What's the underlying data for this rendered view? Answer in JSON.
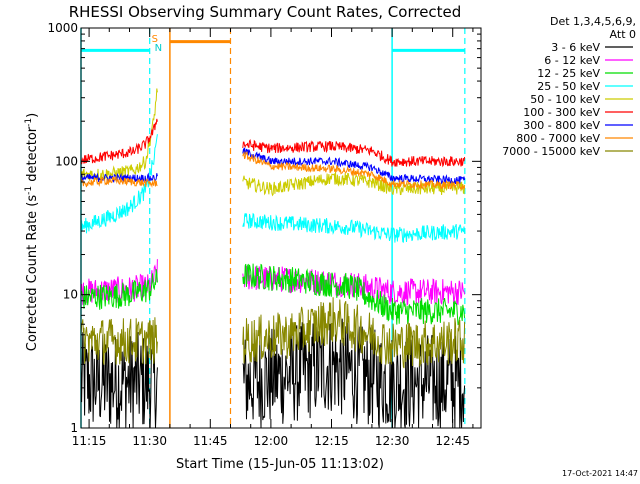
{
  "chart_data": {
    "type": "line",
    "title": "RHESSI Observing Summary Count Rates, Corrected",
    "xlabel": "Start Time (15-Jun-05 11:13:02)",
    "ylabel": "Corrected Count Rate (s",
    "ylabel_sup1": "-1",
    "ylabel_mid": " detector",
    "ylabel_sup2": "-1",
    "ylabel_end": ")",
    "yscale": "log",
    "xlim": [
      "11:13",
      "12:52"
    ],
    "ylim": [
      1,
      1000
    ],
    "x_ticks": [
      "11:15",
      "11:30",
      "11:45",
      "12:00",
      "12:15",
      "12:30",
      "12:45"
    ],
    "y_ticks": [
      "1",
      "10",
      "100",
      "1000"
    ],
    "legend": {
      "placement": "right",
      "header": [
        "Det 1,3,4,5,6,9,",
        "Att 0"
      ]
    },
    "series": [
      {
        "name": "3 - 6 keV",
        "color": "#000000",
        "points": [
          [
            "11:13",
            2.2
          ],
          [
            "11:32",
            2.2
          ],
          [
            "11:53",
            2.2
          ],
          [
            "12:05",
            2.5
          ],
          [
            "12:15",
            3.0
          ],
          [
            "12:22",
            2.5
          ],
          [
            "12:30",
            2.2
          ],
          [
            "12:48",
            2.2
          ]
        ]
      },
      {
        "name": "6 - 12 keV",
        "color": "#ff00ff",
        "points": [
          [
            "11:13",
            10.5
          ],
          [
            "11:25",
            11
          ],
          [
            "11:30",
            11.5
          ],
          [
            "11:32",
            15
          ],
          [
            "11:53",
            13.5
          ],
          [
            "12:05",
            13
          ],
          [
            "12:20",
            12
          ],
          [
            "12:30",
            10.5
          ],
          [
            "12:48",
            10.5
          ]
        ]
      },
      {
        "name": "12 - 25 keV",
        "color": "#00dd00",
        "points": [
          [
            "11:13",
            9.5
          ],
          [
            "11:25",
            10
          ],
          [
            "11:30",
            11
          ],
          [
            "11:32",
            13
          ],
          [
            "11:53",
            14
          ],
          [
            "12:05",
            13
          ],
          [
            "12:20",
            11.5
          ],
          [
            "12:30",
            7.5
          ],
          [
            "12:48",
            7.5
          ]
        ]
      },
      {
        "name": "25 - 50 keV",
        "color": "#00ffff",
        "points": [
          [
            "11:13",
            32
          ],
          [
            "11:20",
            38
          ],
          [
            "11:25",
            45
          ],
          [
            "11:29",
            60
          ],
          [
            "11:31",
            100
          ],
          [
            "11:32",
            160
          ],
          [
            "11:53",
            36
          ],
          [
            "12:05",
            34
          ],
          [
            "12:20",
            32
          ],
          [
            "12:30",
            28
          ],
          [
            "12:48",
            30
          ]
        ]
      },
      {
        "name": "50 - 100 keV",
        "color": "#cccc00",
        "points": [
          [
            "11:13",
            80
          ],
          [
            "11:20",
            80
          ],
          [
            "11:26",
            85
          ],
          [
            "11:29",
            100
          ],
          [
            "11:31",
            200
          ],
          [
            "11:32",
            380
          ],
          [
            "11:53",
            70
          ],
          [
            "12:00",
            62
          ],
          [
            "12:15",
            75
          ],
          [
            "12:25",
            70
          ],
          [
            "12:30",
            62
          ],
          [
            "12:48",
            63
          ]
        ]
      },
      {
        "name": "100 - 300 keV",
        "color": "#ff0000",
        "points": [
          [
            "11:13",
            102
          ],
          [
            "11:20",
            110
          ],
          [
            "11:26",
            118
          ],
          [
            "11:29",
            135
          ],
          [
            "11:31",
            170
          ],
          [
            "11:32",
            220
          ],
          [
            "11:53",
            135
          ],
          [
            "12:00",
            125
          ],
          [
            "12:15",
            130
          ],
          [
            "12:25",
            120
          ],
          [
            "12:30",
            100
          ],
          [
            "12:48",
            100
          ]
        ]
      },
      {
        "name": "300 - 800 keV",
        "color": "#0000ff",
        "points": [
          [
            "11:13",
            75
          ],
          [
            "11:20",
            75
          ],
          [
            "11:31",
            75
          ],
          [
            "11:53",
            120
          ],
          [
            "12:00",
            100
          ],
          [
            "12:15",
            100
          ],
          [
            "12:25",
            90
          ],
          [
            "12:30",
            75
          ],
          [
            "12:48",
            72
          ]
        ]
      },
      {
        "name": "800 - 7000 keV",
        "color": "#ff8800",
        "points": [
          [
            "11:13",
            68
          ],
          [
            "11:20",
            72
          ],
          [
            "11:26",
            70
          ],
          [
            "11:31",
            68
          ],
          [
            "11:53",
            112
          ],
          [
            "12:00",
            92
          ],
          [
            "12:15",
            88
          ],
          [
            "12:25",
            80
          ],
          [
            "12:30",
            68
          ],
          [
            "12:48",
            66
          ]
        ]
      },
      {
        "name": "7000 - 15000 keV",
        "color": "#888800",
        "points": [
          [
            "11:13",
            4.5
          ],
          [
            "11:20",
            4.5
          ],
          [
            "11:26",
            4.5
          ],
          [
            "11:31",
            4.5
          ],
          [
            "11:53",
            4.5
          ],
          [
            "12:05",
            5
          ],
          [
            "12:15",
            6.5
          ],
          [
            "12:22",
            5.5
          ],
          [
            "12:30",
            4.2
          ],
          [
            "12:48",
            4.5
          ]
        ]
      }
    ],
    "annotations": {
      "markers": [
        {
          "label": "S",
          "color": "#ff8800"
        },
        {
          "label": "N",
          "color": "#00cccc"
        }
      ],
      "flag_bars": [
        {
          "color": "#00ffff",
          "from": "11:13",
          "to": "11:30",
          "y": 680
        },
        {
          "color": "#ff8800",
          "from": "11:35",
          "to": "11:50",
          "y": 790
        },
        {
          "color": "#00ffff",
          "from": "12:30",
          "to": "12:48",
          "y": 680
        }
      ],
      "solid_lines": [
        {
          "x": "11:13",
          "color": "#00ffff"
        },
        {
          "x": "11:35",
          "color": "#ff8800"
        },
        {
          "x": "12:30",
          "color": "#00ffff"
        }
      ],
      "dashed_lines": [
        {
          "x": "11:30",
          "color": "#00ffff"
        },
        {
          "x": "11:50",
          "color": "#ff8800"
        },
        {
          "x": "12:48",
          "color": "#00ffff"
        }
      ]
    },
    "gaps": [
      [
        "11:32",
        "11:53"
      ]
    ],
    "footer_timestamp": "17-Oct-2021 14:47"
  }
}
